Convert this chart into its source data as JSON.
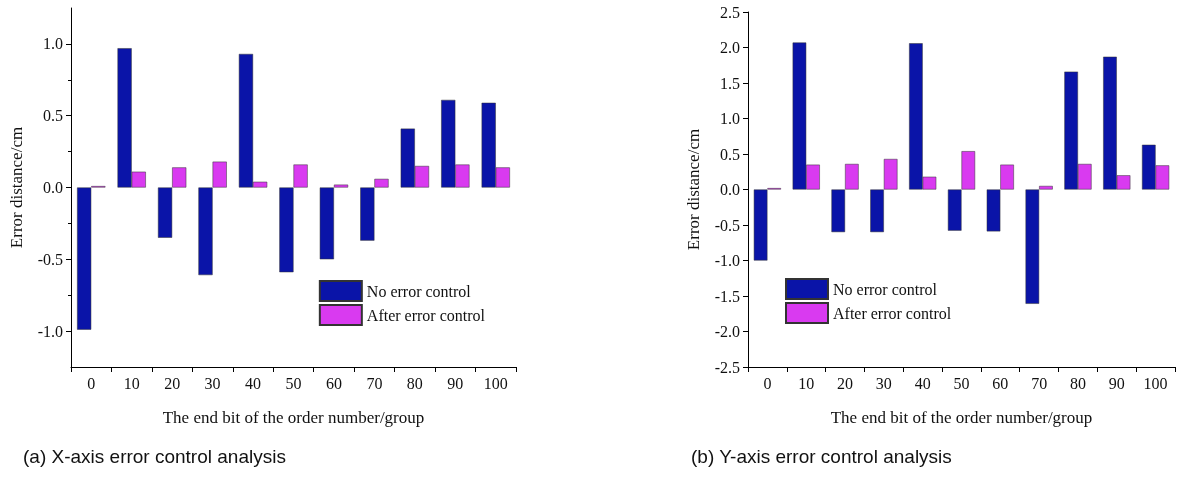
{
  "chart_data": [
    {
      "type": "bar",
      "xlabel": "The end bit of the order number/group",
      "ylabel": "Error distance/cm",
      "categories": [
        "0",
        "10",
        "20",
        "30",
        "40",
        "50",
        "60",
        "70",
        "80",
        "90",
        "100"
      ],
      "series": [
        {
          "name": "No error control",
          "color": "#0a14a8",
          "values": [
            -0.99,
            0.97,
            -0.35,
            -0.61,
            0.93,
            -0.59,
            -0.5,
            -0.37,
            0.41,
            0.61,
            0.59
          ]
        },
        {
          "name": "After error control",
          "color": "#d93af0",
          "values": [
            0.01,
            0.11,
            0.14,
            0.18,
            0.04,
            0.16,
            0.02,
            0.06,
            0.15,
            0.16,
            0.14
          ]
        }
      ],
      "ylim": [
        -1.25,
        1.25
      ],
      "yticks": [
        {
          "value": -1,
          "label": "-1.0"
        },
        -0.5,
        {
          "value": 0,
          "label": "0.0"
        },
        0.5,
        {
          "value": 1,
          "label": "1.0"
        }
      ],
      "grid": false,
      "legend": "bottom right",
      "annotations": [
        "(a) X-axis error control analysis"
      ]
    },
    {
      "type": "bar",
      "xlabel": "The end bit of the order number/group",
      "ylabel": "Error distance/cm",
      "categories": [
        "0",
        "10",
        "20",
        "30",
        "40",
        "50",
        "60",
        "70",
        "80",
        "90",
        "100"
      ],
      "series": [
        {
          "name": "No error control",
          "color": "#0a14a8",
          "values": [
            -1.0,
            2.07,
            -0.6,
            -0.6,
            2.06,
            -0.58,
            -0.59,
            -1.61,
            1.66,
            1.87,
            0.63
          ]
        },
        {
          "name": "After error control",
          "color": "#d93af0",
          "values": [
            0.02,
            0.35,
            0.36,
            0.43,
            0.18,
            0.54,
            0.35,
            0.05,
            0.36,
            0.2,
            0.34
          ]
        }
      ],
      "ylim": [
        -2.5,
        2.5
      ],
      "yticks": [
        -2.5,
        {
          "value": -2,
          "label": "-2.0"
        },
        -1.5,
        {
          "value": -1,
          "label": "-1.0"
        },
        -0.5,
        {
          "value": 0,
          "label": "0.0"
        },
        0.5,
        {
          "value": 1,
          "label": "1.0"
        },
        1.5,
        {
          "value": 2,
          "label": "2.0"
        },
        2.5
      ],
      "grid": false,
      "legend": "bottom left",
      "annotations": [
        "(b) Y-axis error control analysis"
      ]
    }
  ]
}
